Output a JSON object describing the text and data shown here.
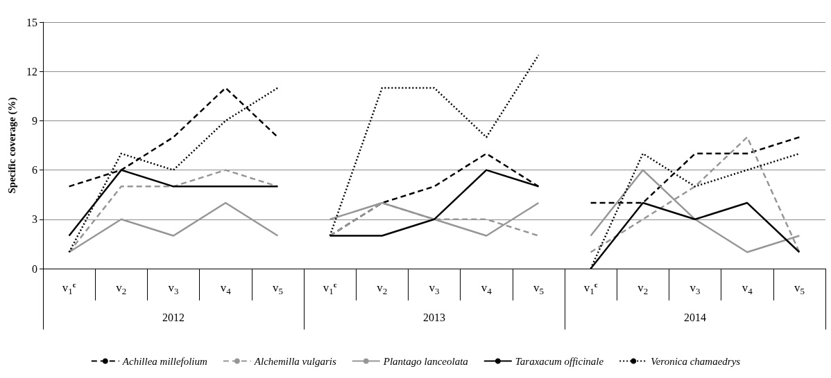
{
  "chart_data": {
    "type": "line",
    "ylabel": "Specific coverage (%)",
    "categories": [
      "v$_{1}$$^{c}$",
      "v$_{2}$",
      "v$_{3}$",
      "v$_{4}$",
      "v$_{5}$",
      "v$_{1}$$^{c}$",
      "v$_{2}$",
      "v$_{3}$",
      "v$_{4}$",
      "v$_{5}$",
      "v$_{1}$$^{c}$",
      "v$_{2}$",
      "v$_{3}$",
      "v$_{4}$",
      "v$_{5}$"
    ],
    "annotations": [
      "2012",
      "2013",
      "2014"
    ],
    "series": [
      {
        "name": "Achillea millefolium",
        "color": "#000000",
        "line_style": "dashed",
        "values": [
          5,
          6,
          8,
          11,
          8,
          2,
          4,
          5,
          7,
          5,
          4,
          4,
          7,
          7,
          8
        ]
      },
      {
        "name": "Alchemilla vulgaris",
        "color": "#969696",
        "line_style": "dashed",
        "values": [
          1,
          5,
          5,
          6,
          5,
          2,
          4,
          3,
          3,
          2,
          1,
          3,
          5,
          8,
          1
        ]
      },
      {
        "name": "Plantago lanceolata",
        "color": "#969696",
        "line_style": "solid",
        "values": [
          1,
          3,
          2,
          4,
          2,
          3,
          4,
          3,
          2,
          4,
          2,
          6,
          3,
          1,
          2
        ]
      },
      {
        "name": "Taraxacum officinale",
        "color": "#000000",
        "line_style": "solid",
        "values": [
          2,
          6,
          5,
          5,
          5,
          2,
          2,
          3,
          6,
          5,
          0,
          4,
          3,
          4,
          1
        ]
      },
      {
        "name": "Veronica chamaedrys",
        "color": "#000000",
        "line_style": "dotted",
        "values": [
          1,
          7,
          6,
          9,
          11,
          2,
          11,
          11,
          8,
          13,
          0,
          7,
          5,
          6,
          7
        ]
      }
    ],
    "ylim": [
      0,
      15
    ],
    "yticks": [
      0,
      3,
      6,
      9,
      12,
      15
    ],
    "grid": "y",
    "legend": "bottom",
    "marker": "none"
  }
}
